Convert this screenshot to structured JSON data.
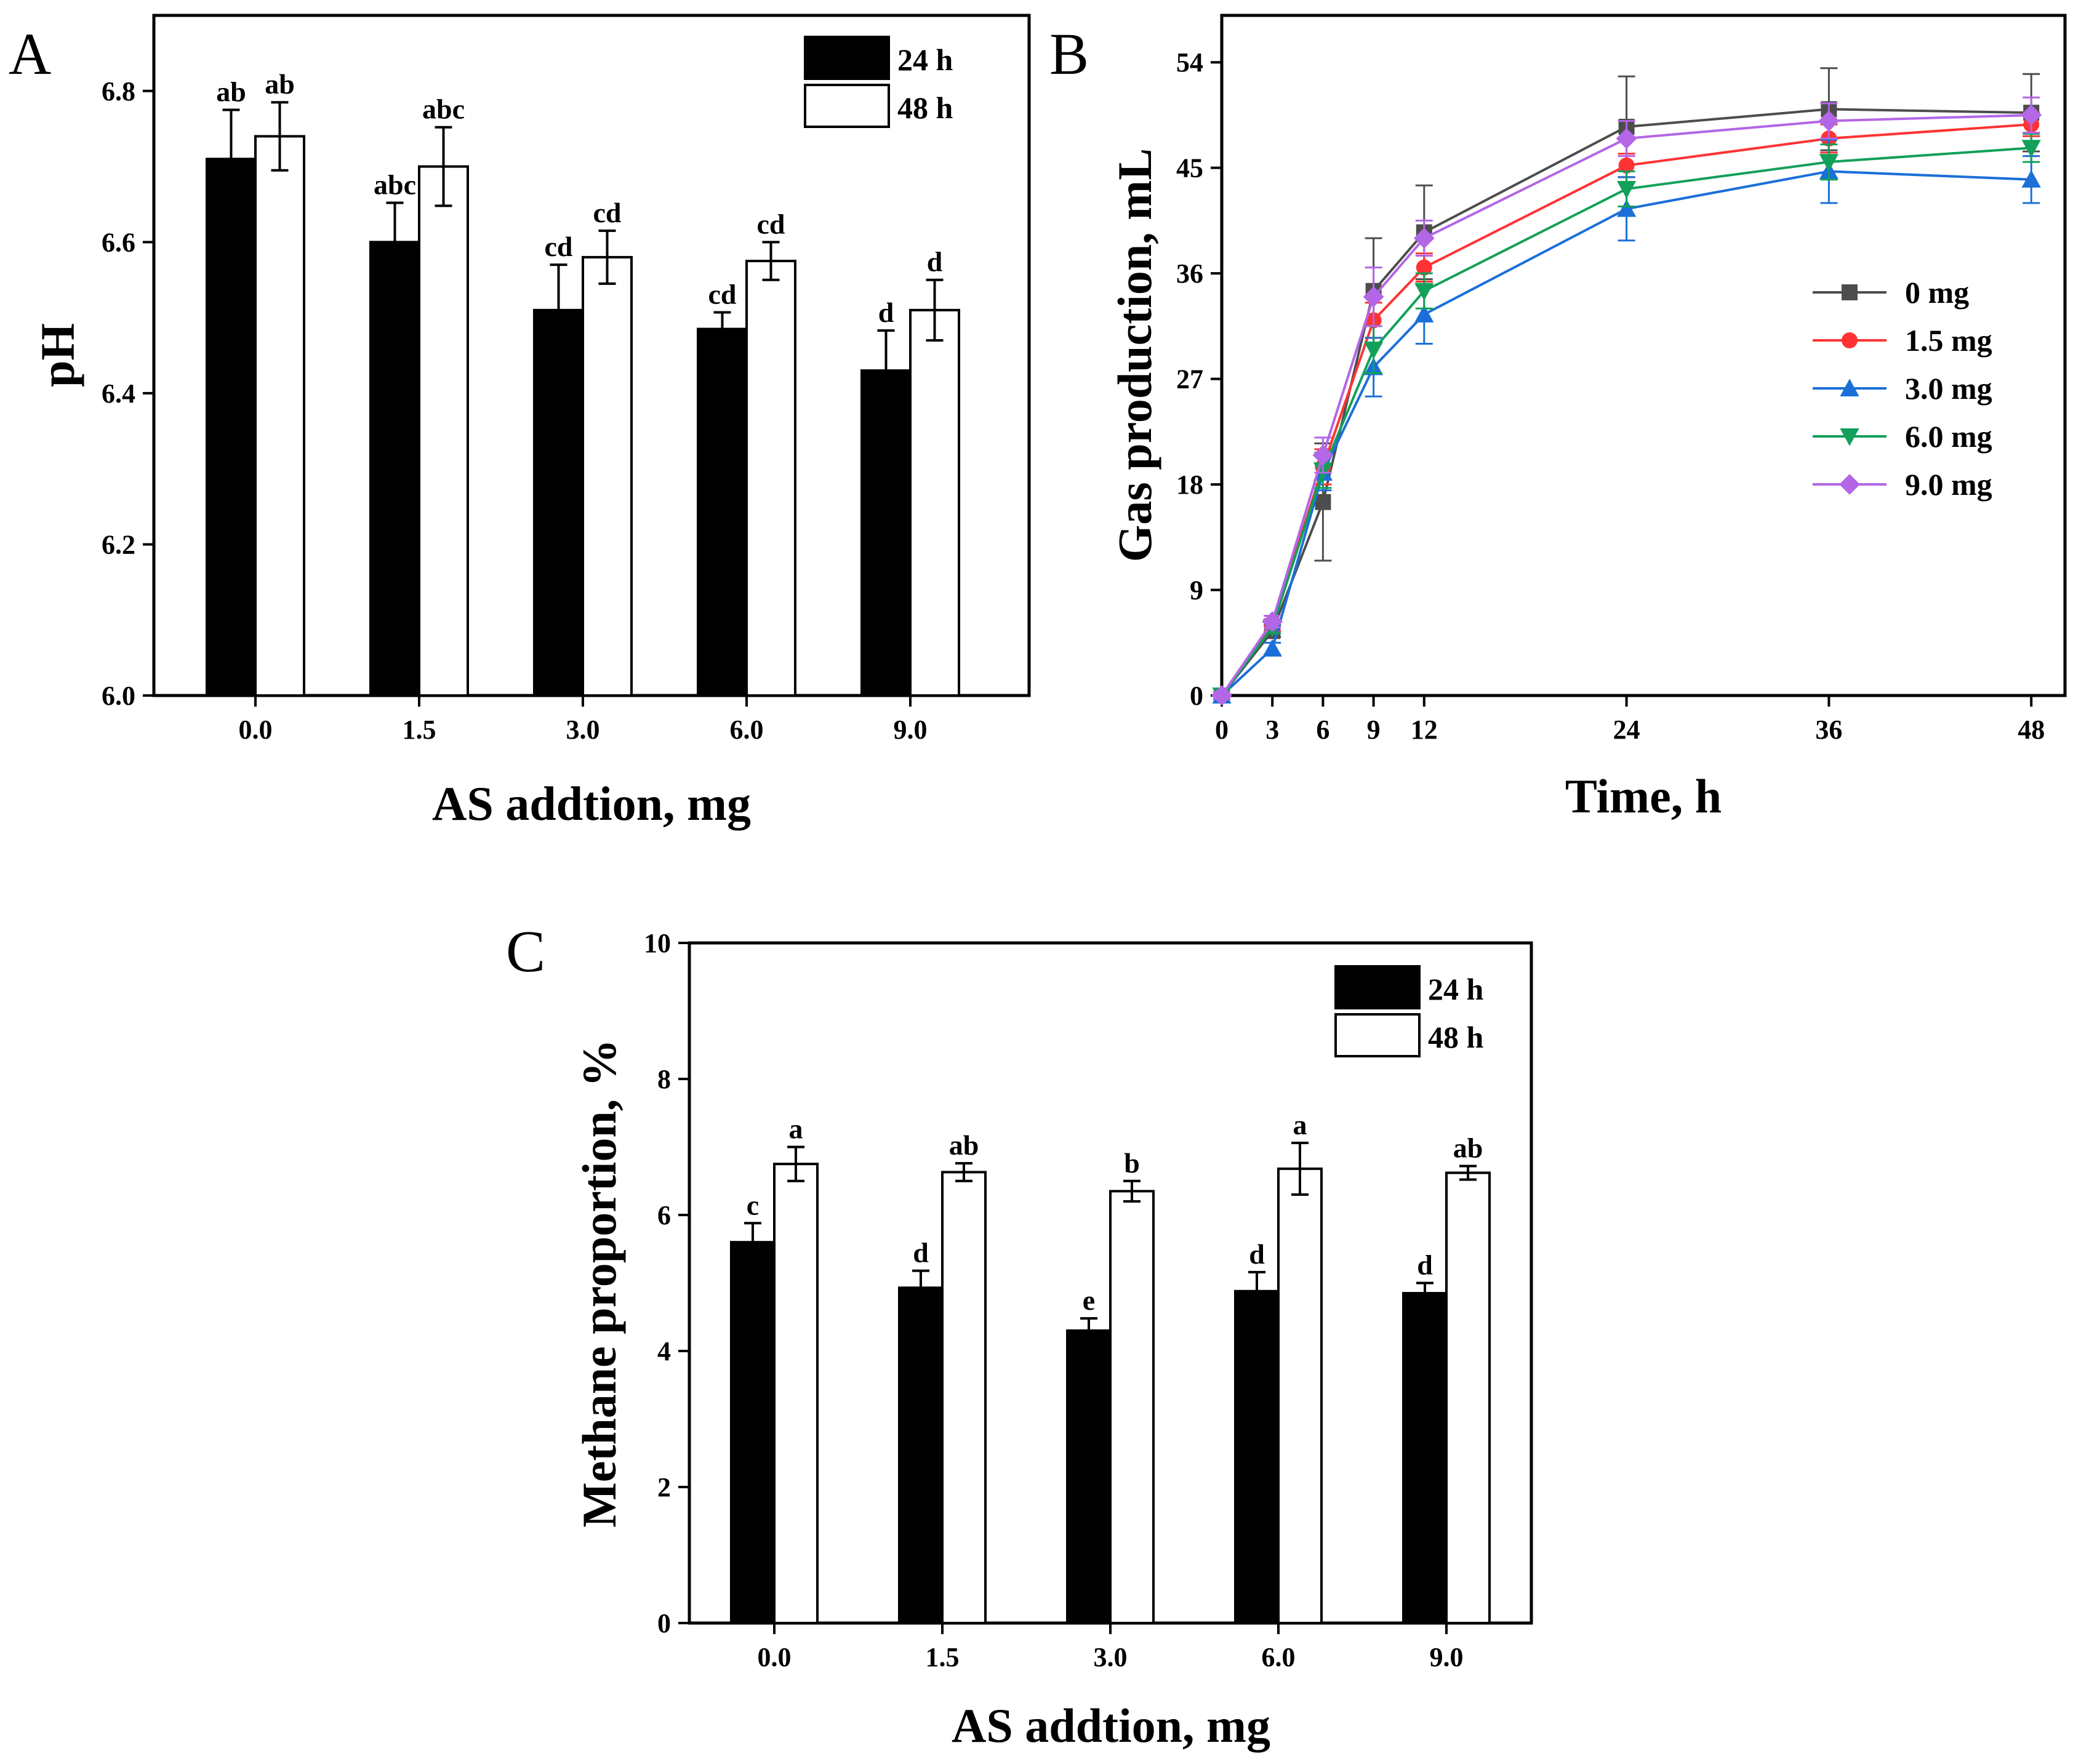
{
  "chart_data": [
    {
      "panel": "A",
      "type": "bar",
      "title": "",
      "xlabel": "AS addtion, mg",
      "ylabel": "pH",
      "categories": [
        "0.0",
        "1.5",
        "3.0",
        "6.0",
        "9.0"
      ],
      "ylim": [
        6.0,
        6.9
      ],
      "yticks": [
        "6.0",
        "6.2",
        "6.4",
        "6.6",
        "6.8"
      ],
      "legend_position": "top-right",
      "series": [
        {
          "name": "24 h",
          "color": "#000000",
          "values": [
            6.71,
            6.6,
            6.51,
            6.485,
            6.43
          ],
          "errors": [
            0.065,
            0.052,
            0.06,
            0.022,
            0.053
          ],
          "labels": [
            "ab",
            "abc",
            "cd",
            "cd",
            "d"
          ]
        },
        {
          "name": "48 h",
          "color": "#ffffff",
          "values": [
            6.74,
            6.7,
            6.58,
            6.575,
            6.51
          ],
          "errors": [
            0.045,
            0.052,
            0.035,
            0.025,
            0.04
          ],
          "labels": [
            "ab",
            "abc",
            "cd",
            "cd",
            "d"
          ]
        }
      ]
    },
    {
      "panel": "B",
      "type": "line",
      "title": "",
      "xlabel": "Time, h",
      "ylabel": "Gas production, mL",
      "x": [
        0,
        3,
        6,
        9,
        12,
        24,
        36,
        48
      ],
      "xticks": [
        "0",
        "3",
        "6",
        "9",
        "12",
        "24",
        "36",
        "48"
      ],
      "xlim": [
        0,
        50
      ],
      "ylim": [
        0,
        58
      ],
      "yticks": [
        "0",
        "9",
        "18",
        "27",
        "36",
        "45",
        "54"
      ],
      "legend_position": "center-right",
      "series": [
        {
          "name": "0 mg",
          "color": "#4d4d4d",
          "marker": "square",
          "values": [
            0,
            5.5,
            16.5,
            34.5,
            39.5,
            48.5,
            50.0,
            49.7
          ],
          "errors": [
            0.3,
            0.5,
            5.0,
            4.5,
            4.0,
            4.3,
            3.5,
            3.3
          ]
        },
        {
          "name": "1.5 mg",
          "color": "#ff3333",
          "marker": "circle",
          "values": [
            0,
            6.0,
            19.5,
            32.0,
            36.5,
            45.2,
            47.5,
            48.7
          ],
          "errors": [
            0.3,
            0.5,
            1.5,
            1.5,
            1.2,
            1.0,
            1.2,
            1.0
          ]
        },
        {
          "name": "3.0 mg",
          "color": "#1a6fd9",
          "marker": "triangle-up",
          "values": [
            0,
            4.0,
            19.0,
            28.0,
            32.5,
            41.5,
            44.7,
            44.0
          ],
          "errors": [
            0.3,
            0.5,
            1.5,
            2.5,
            2.5,
            2.7,
            2.7,
            2.0
          ]
        },
        {
          "name": "6.0 mg",
          "color": "#12a05a",
          "marker": "triangle-down",
          "values": [
            0,
            5.8,
            19.2,
            29.5,
            34.5,
            43.2,
            45.5,
            46.7
          ],
          "errors": [
            0.3,
            0.5,
            1.5,
            2.0,
            1.5,
            1.5,
            1.5,
            1.2
          ]
        },
        {
          "name": "9.0 mg",
          "color": "#b366e6",
          "marker": "diamond",
          "values": [
            0,
            6.3,
            20.5,
            34.0,
            39.0,
            47.5,
            49.0,
            49.5
          ],
          "errors": [
            0.3,
            0.5,
            1.5,
            2.5,
            1.5,
            1.5,
            1.5,
            1.5
          ]
        }
      ]
    },
    {
      "panel": "C",
      "type": "bar",
      "title": "",
      "xlabel": "AS addtion, mg",
      "ylabel": "Methane proportion, %",
      "categories": [
        "0.0",
        "1.5",
        "3.0",
        "6.0",
        "9.0"
      ],
      "ylim": [
        0,
        10
      ],
      "yticks": [
        "0",
        "2",
        "4",
        "6",
        "8",
        "10"
      ],
      "legend_position": "top-right",
      "series": [
        {
          "name": "24 h",
          "color": "#000000",
          "values": [
            5.6,
            4.93,
            4.3,
            4.88,
            4.85
          ],
          "errors": [
            0.28,
            0.25,
            0.18,
            0.28,
            0.15
          ],
          "labels": [
            "c",
            "d",
            "e",
            "d",
            "d"
          ]
        },
        {
          "name": "48 h",
          "color": "#ffffff",
          "values": [
            6.75,
            6.63,
            6.35,
            6.68,
            6.62
          ],
          "errors": [
            0.25,
            0.13,
            0.15,
            0.38,
            0.1
          ],
          "labels": [
            "a",
            "ab",
            "b",
            "a",
            "ab"
          ]
        }
      ]
    }
  ]
}
